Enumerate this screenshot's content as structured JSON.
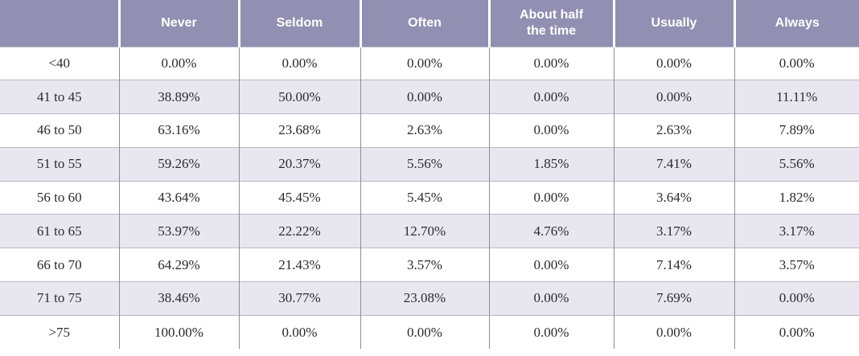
{
  "chart_data": {
    "type": "table",
    "title": "",
    "columns": [
      "",
      "Never",
      "Seldom",
      "Often",
      "About half\nthe time",
      "Usually",
      "Always"
    ],
    "rows": [
      {
        "label": "<40",
        "values": [
          "0.00%",
          "0.00%",
          "0.00%",
          "0.00%",
          "0.00%",
          "0.00%"
        ]
      },
      {
        "label": "41 to 45",
        "values": [
          "38.89%",
          "50.00%",
          "0.00%",
          "0.00%",
          "0.00%",
          "11.11%"
        ]
      },
      {
        "label": "46 to 50",
        "values": [
          "63.16%",
          "23.68%",
          "2.63%",
          "0.00%",
          "2.63%",
          "7.89%"
        ]
      },
      {
        "label": "51 to 55",
        "values": [
          "59.26%",
          "20.37%",
          "5.56%",
          "1.85%",
          "7.41%",
          "5.56%"
        ]
      },
      {
        "label": "56 to 60",
        "values": [
          "43.64%",
          "45.45%",
          "5.45%",
          "0.00%",
          "3.64%",
          "1.82%"
        ]
      },
      {
        "label": "61 to 65",
        "values": [
          "53.97%",
          "22.22%",
          "12.70%",
          "4.76%",
          "3.17%",
          "3.17%"
        ]
      },
      {
        "label": "66 to 70",
        "values": [
          "64.29%",
          "21.43%",
          "3.57%",
          "0.00%",
          "7.14%",
          "3.57%"
        ]
      },
      {
        "label": "71 to 75",
        "values": [
          "38.46%",
          "30.77%",
          "23.08%",
          "0.00%",
          "7.69%",
          "0.00%"
        ]
      },
      {
        "label": ">75",
        "values": [
          "100.00%",
          "0.00%",
          "0.00%",
          "0.00%",
          "0.00%",
          "0.00%"
        ]
      }
    ]
  },
  "colors": {
    "header_bg": "#918FB2",
    "header_text": "#FFFFFF",
    "row_bg": "#FFFFFF",
    "alt_row_bg": "#E8E7F0",
    "body_text": "#2B2A30",
    "vertical_border": "#8F8D9E",
    "horizontal_border": "#B9B7C4",
    "header_separator": "#FFFFFF"
  }
}
